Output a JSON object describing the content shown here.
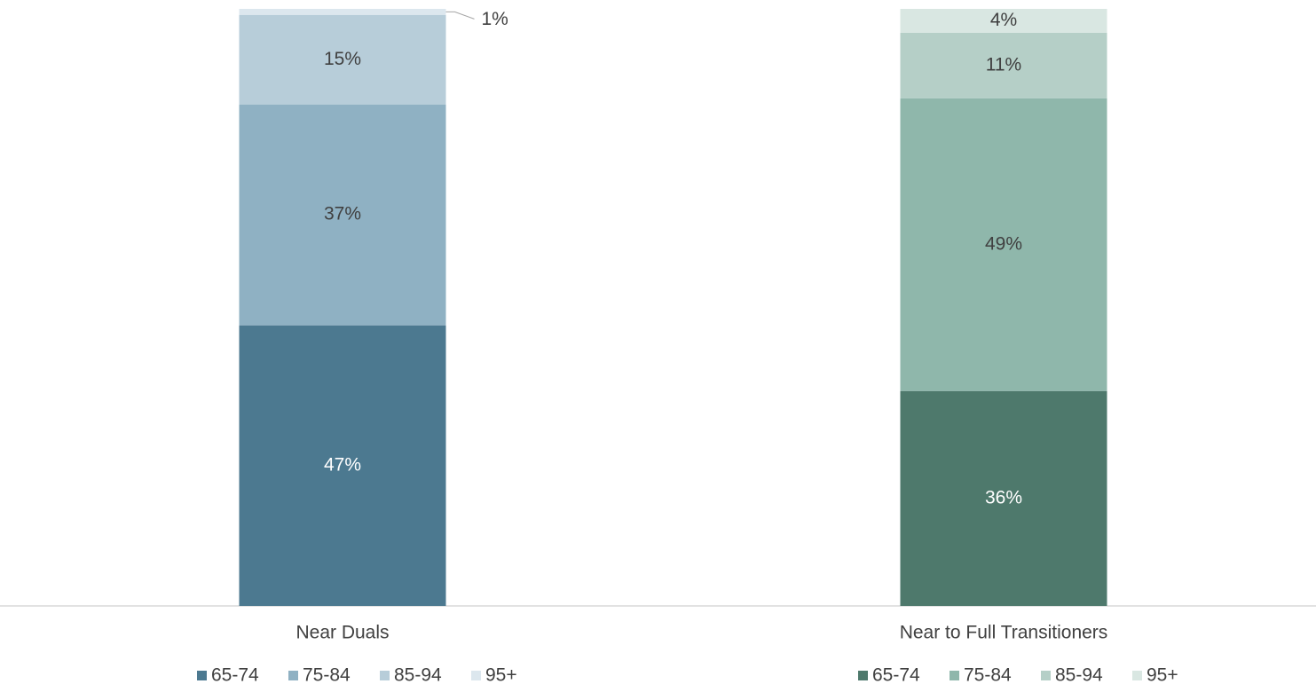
{
  "chart_data": [
    {
      "type": "bar",
      "stacked": true,
      "categories": [
        "Near Duals"
      ],
      "ylim": [
        0,
        100
      ],
      "series": [
        {
          "name": "65-74",
          "color": "#4c7990",
          "values": [
            47
          ],
          "value_labels": [
            "47%"
          ]
        },
        {
          "name": "75-84",
          "color": "#8fb1c3",
          "values": [
            37
          ],
          "value_labels": [
            "37%"
          ]
        },
        {
          "name": "85-94",
          "color": "#b7cdd9",
          "values": [
            15
          ],
          "value_labels": [
            "15%"
          ]
        },
        {
          "name": "95+",
          "color": "#dce7ee",
          "values": [
            1
          ],
          "value_labels": [
            "1%"
          ]
        }
      ]
    },
    {
      "type": "bar",
      "stacked": true,
      "categories": [
        "Near to Full Transitioners"
      ],
      "ylim": [
        0,
        100
      ],
      "series": [
        {
          "name": "65-74",
          "color": "#4e796c",
          "values": [
            36
          ],
          "value_labels": [
            "36%"
          ]
        },
        {
          "name": "75-84",
          "color": "#8fb7ab",
          "values": [
            49
          ],
          "value_labels": [
            "49%"
          ]
        },
        {
          "name": "85-94",
          "color": "#b5cfc7",
          "values": [
            11
          ],
          "value_labels": [
            "11%"
          ]
        },
        {
          "name": "95+",
          "color": "#d9e7e2",
          "values": [
            4
          ],
          "value_labels": [
            "4%"
          ]
        }
      ]
    }
  ]
}
